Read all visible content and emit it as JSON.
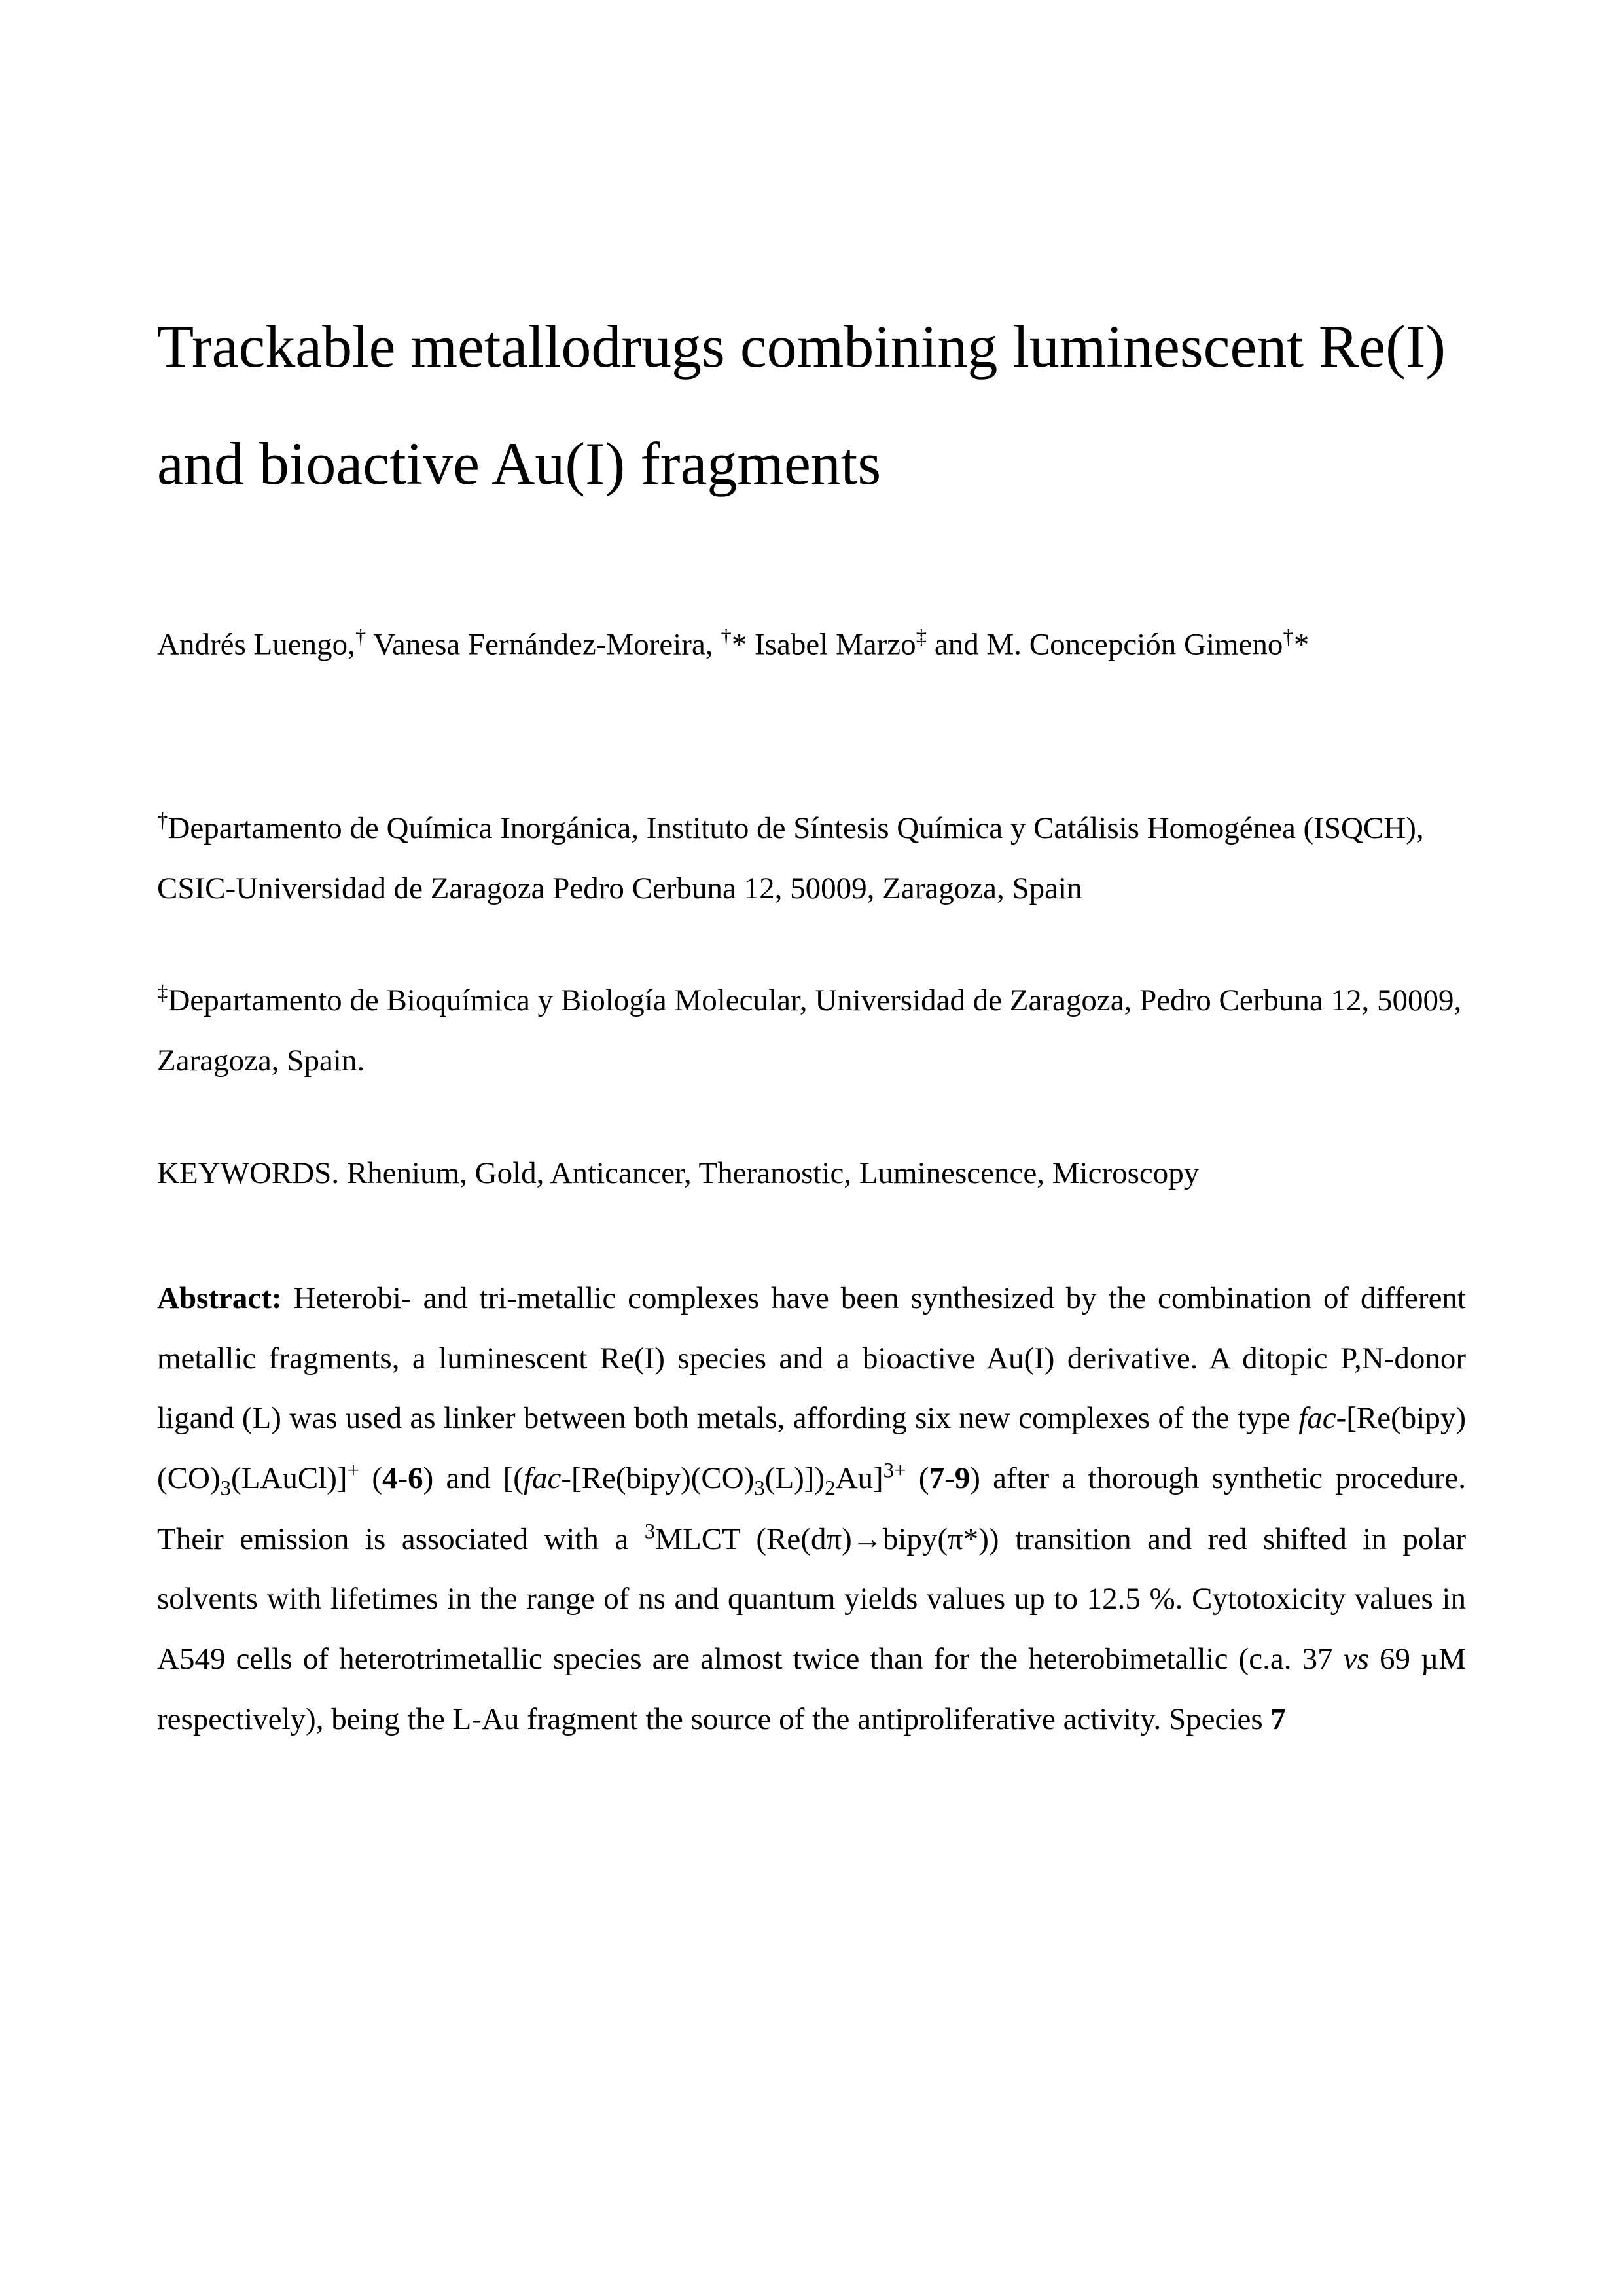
{
  "title": "Trackable metallodrugs combining luminescent Re(I) and bioactive Au(I) fragments",
  "authors": {
    "author1": "Andrés Luengo,",
    "author1_mark": "†",
    "author2": " Vanesa Fernández-Moreira, ",
    "author2_mark": "†",
    "author2_corr": "* ",
    "author3": "Isabel Marzo",
    "author3_mark": "‡",
    "author4": " and M. Concepción Gimeno",
    "author4_mark": "†",
    "author4_corr": "*"
  },
  "affiliations": {
    "aff1_mark": "†",
    "aff1_text": "Departamento de Química Inorgánica, Instituto de Síntesis Química y Catálisis Homogénea (ISQCH), CSIC-Universidad de Zaragoza Pedro Cerbuna 12, 50009, Zaragoza, Spain",
    "aff2_mark": "‡",
    "aff2_text": "Departamento de Bioquímica y Biología Molecular, Universidad de Zaragoza, Pedro Cerbuna 12, 50009, Zaragoza, Spain."
  },
  "keywords": "KEYWORDS. Rhenium, Gold, Anticancer, Theranostic, Luminescence, Microscopy",
  "abstract": {
    "label": "Abstract:",
    "part1": " Heterobi- and tri-metallic complexes have been synthesized by the combination of different metallic fragments, a luminescent Re(I) species and a bioactive Au(I) derivative. A ditopic P,N-donor ligand (L) was used as linker between both metals, affording six new complexes of the type ",
    "fac1": "fac-",
    "formula1_a": "[Re(bipy)(CO)",
    "formula1_sub1": "3",
    "formula1_b": "(LAuCl)]",
    "formula1_sup1": "+",
    "formula1_c": " (",
    "bold1": "4",
    "formula1_d": "-",
    "bold2": "6",
    "formula1_e": ") and [(",
    "fac2": "fac",
    "formula2_a": "-[Re(bipy)(CO)",
    "formula2_sub1": "3",
    "formula2_b": "(L)])",
    "formula2_sub2": "2",
    "formula2_c": "Au]",
    "formula2_sup1": "3+",
    "formula2_d": " (",
    "bold3": "7",
    "formula2_e": "-",
    "bold4": "9",
    "formula2_f": ") after a thorough  synthetic procedure. Their emission is associated with a ",
    "sup3": "3",
    "part2": "MLCT (Re(dπ)→bipy(π*)) transition and red shifted in polar solvents with lifetimes in the range of ns and quantum yields values up to 12.5 %. Cytotoxicity values in A549 cells of heterotrimetallic species are almost twice than for the heterobimetallic  (c.a. 37 ",
    "vs": "vs",
    "part3": " 69 µM respectively), being  the L-Au fragment the source of the antiproliferative activity. Species ",
    "bold5": "7"
  },
  "styling": {
    "background_color": "#ffffff",
    "text_color": "#000000",
    "title_fontsize": 92,
    "body_fontsize": 47,
    "line_height_title": 1.95,
    "line_height_body": 1.95,
    "font_family": "Times New Roman"
  }
}
